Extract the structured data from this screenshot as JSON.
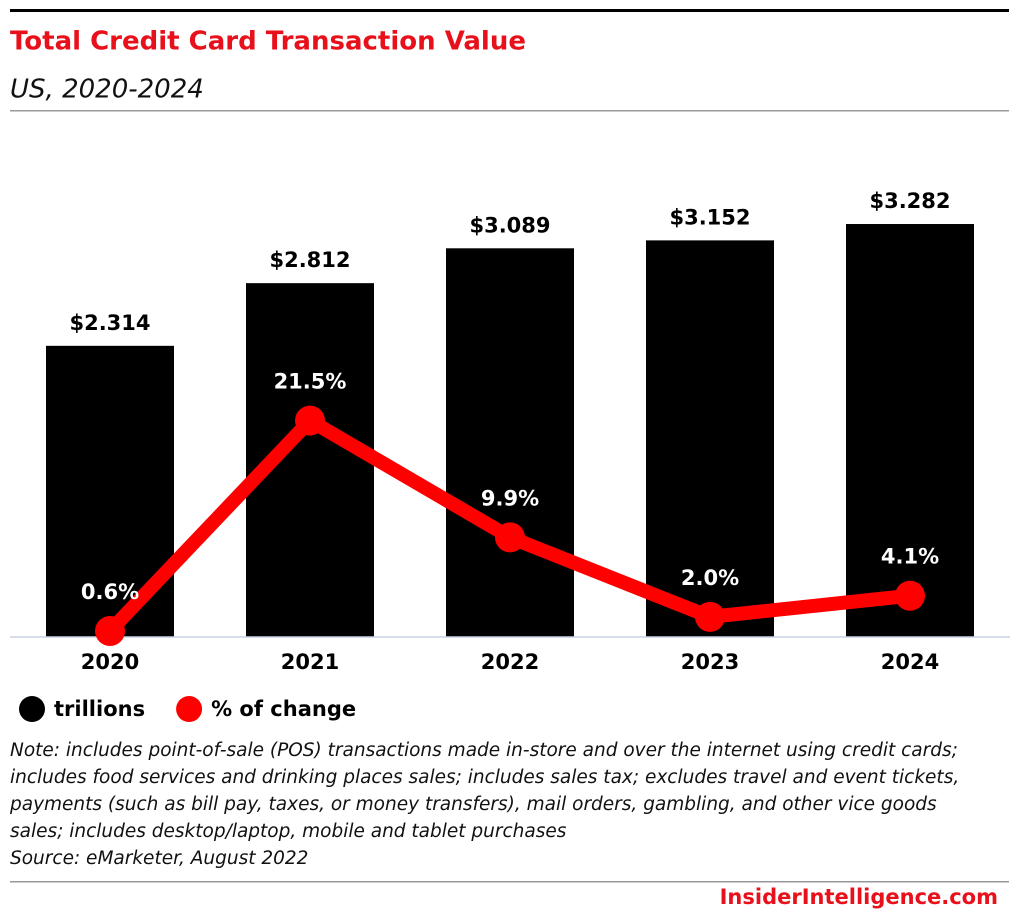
{
  "chart_data": {
    "type": "bar",
    "title": "Total Credit Card Transaction Value",
    "subtitle": "US, 2020-2024",
    "categories": [
      "2020",
      "2021",
      "2022",
      "2023",
      "2024"
    ],
    "series": [
      {
        "name": "trillions",
        "type": "bar",
        "color": "#000000",
        "values": [
          2.314,
          2.812,
          3.089,
          3.152,
          3.282
        ],
        "value_labels": [
          "$2.314",
          "$2.812",
          "$3.089",
          "$3.152",
          "$3.282"
        ]
      },
      {
        "name": "% of change",
        "type": "line",
        "axis": "y2",
        "color": "#ff0000",
        "values": [
          0.6,
          21.5,
          9.9,
          2.0,
          4.1
        ],
        "value_labels": [
          "0.6%",
          "21.5%",
          "9.9%",
          "2.0%",
          "4.1%"
        ]
      }
    ],
    "ylim": [
      0,
      3.6
    ],
    "y2lim": [
      0,
      45
    ],
    "legend": "bottom",
    "note": "Note: includes point-of-sale (POS) transactions made in-store and over the internet using credit cards; includes food services and drinking places sales; includes sales tax; excludes travel and event tickets, payments (such as bill pay, taxes, or money transfers), mail orders, gambling, and other vice goods sales; includes desktop/laptop, mobile and tablet purchases",
    "source": "Source: eMarketer, August 2022",
    "brand": "InsiderIntelligence.com"
  }
}
